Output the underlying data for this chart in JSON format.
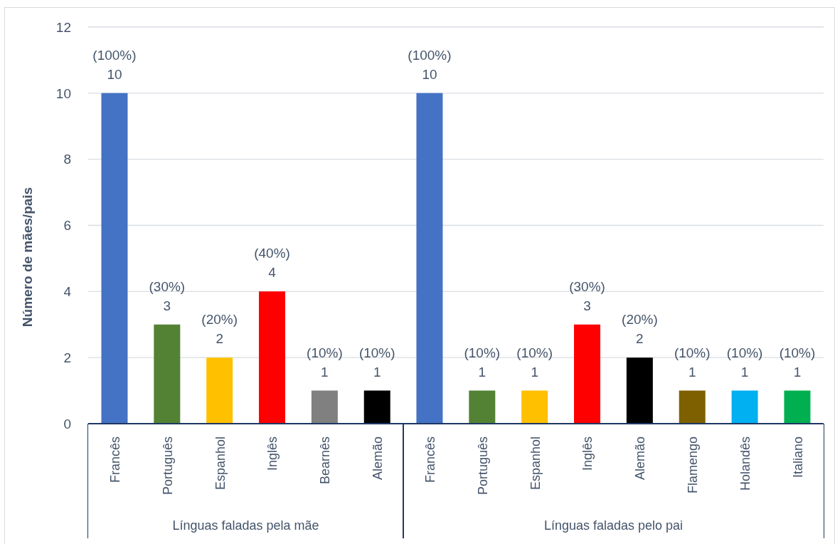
{
  "chart_data": [
    {
      "type": "bar",
      "xlabel": "Línguas faladas pela mãe",
      "ylabel": "Número de mães/pais",
      "categories": [
        "Francês",
        "Português",
        "Espanhol",
        "Inglês",
        "Bearnês",
        "Alemão"
      ],
      "values": [
        10,
        3,
        2,
        4,
        1,
        1
      ],
      "colors": [
        "#4472c4",
        "#548235",
        "#ffc000",
        "#ff0000",
        "#808080",
        "#000000"
      ],
      "value_labels": [
        "(100%)\n10",
        "(30%)\n3",
        "(20%)\n2",
        "(40%)\n4",
        "(10%)\n1",
        "(10%)\n1"
      ],
      "ylim": [
        0,
        12
      ],
      "yticks": [
        0,
        2,
        4,
        6,
        8,
        10,
        12
      ],
      "grid": "y"
    },
    {
      "type": "bar",
      "xlabel": "Línguas faladas pelo pai",
      "categories": [
        "Francês",
        "Português",
        "Espanhol",
        "Inglês",
        "Alemão",
        "Flamengo",
        "Holandês",
        "Italiano"
      ],
      "values": [
        10,
        1,
        1,
        3,
        2,
        1,
        1,
        1
      ],
      "colors": [
        "#4472c4",
        "#548235",
        "#ffc000",
        "#ff0000",
        "#000000",
        "#7f6000",
        "#00b0f0",
        "#00b050"
      ],
      "value_labels": [
        "(100%)\n10",
        "(10%)\n1",
        "(10%)\n1",
        "(30%)\n3",
        "(20%)\n2",
        "(10%)\n1",
        "(10%)\n1",
        "(10%)\n1"
      ],
      "ylim": [
        0,
        12
      ],
      "yticks": [
        0,
        2,
        4,
        6,
        8,
        10,
        12
      ],
      "grid": "y",
      "tick_labels": "x"
    }
  ]
}
